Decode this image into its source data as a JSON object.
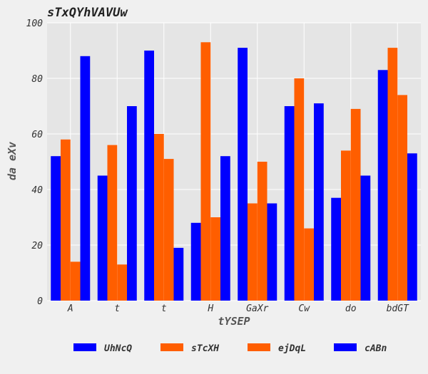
{
  "chart_data": {
    "type": "bar",
    "title": "sTxQYhVAVUw",
    "xlabel": "tYSEP",
    "ylabel": "da eXv",
    "categories": [
      "A",
      "t",
      "t",
      "H",
      "GaXr",
      "Cw",
      "do",
      "bdGT"
    ],
    "ylim": [
      0,
      100
    ],
    "yticks": [
      0,
      20,
      40,
      60,
      80,
      100
    ],
    "grid": true,
    "legend_position": "bottom",
    "series": [
      {
        "name": "UhNcQ",
        "color": "#0000ff",
        "values": [
          52,
          45,
          90,
          28,
          91,
          70,
          37,
          83
        ]
      },
      {
        "name": "sTcXH",
        "color": "#ff5e00",
        "values": [
          58,
          56,
          60,
          93,
          35,
          80,
          54,
          91
        ]
      },
      {
        "name": "ejDqL",
        "color": "#ff5e00",
        "values": [
          14,
          13,
          51,
          30,
          50,
          26,
          69,
          74
        ]
      },
      {
        "name": "cABn",
        "color": "#0000ff",
        "values": [
          88,
          70,
          19,
          52,
          35,
          71,
          45,
          53
        ]
      }
    ]
  }
}
